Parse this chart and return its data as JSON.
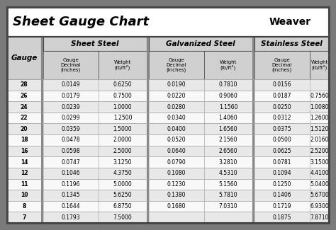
{
  "title": "Sheet Gauge Chart",
  "bg_outer": "#7a7a7a",
  "bg_inner": "#ffffff",
  "header_bg": "#d0d0d0",
  "row_odd_bg": "#e8e8e8",
  "row_even_bg": "#f8f8f8",
  "sep_color": "#888888",
  "border_color": "#444444",
  "gauges": [
    28,
    26,
    24,
    22,
    20,
    18,
    16,
    14,
    12,
    11,
    10,
    8,
    7
  ],
  "sheet_steel": [
    [
      "0.0149",
      "0.6250"
    ],
    [
      "0.0179",
      "0.7500"
    ],
    [
      "0.0239",
      "1.0000"
    ],
    [
      "0.0299",
      "1.2500"
    ],
    [
      "0.0359",
      "1.5000"
    ],
    [
      "0.0478",
      "2.0000"
    ],
    [
      "0.0598",
      "2.5000"
    ],
    [
      "0.0747",
      "3.1250"
    ],
    [
      "0.1046",
      "4.3750"
    ],
    [
      "0.1196",
      "5.0000"
    ],
    [
      "0.1345",
      "5.6250"
    ],
    [
      "0.1644",
      "6.8750"
    ],
    [
      "0.1793",
      "7.5000"
    ]
  ],
  "galvanized_steel": [
    [
      "0.0190",
      "0.7810"
    ],
    [
      "0.0220",
      "0.9060"
    ],
    [
      "0.0280",
      "1.1560"
    ],
    [
      "0.0340",
      "1.4060"
    ],
    [
      "0.0400",
      "1.6560"
    ],
    [
      "0.0520",
      "2.1560"
    ],
    [
      "0.0640",
      "2.6560"
    ],
    [
      "0.0790",
      "3.2810"
    ],
    [
      "0.1080",
      "4.5310"
    ],
    [
      "0.1230",
      "5.1560"
    ],
    [
      "0.1380",
      "5.7810"
    ],
    [
      "0.1680",
      "7.0310"
    ],
    [
      "",
      ""
    ]
  ],
  "stainless_steel": [
    [
      "0.0156",
      ""
    ],
    [
      "0.0187",
      "0.7560"
    ],
    [
      "0.0250",
      "1.0080"
    ],
    [
      "0.0312",
      "1.2600"
    ],
    [
      "0.0375",
      "1.5120"
    ],
    [
      "0.0500",
      "2.0160"
    ],
    [
      "0.0625",
      "2.5200"
    ],
    [
      "0.0781",
      "3.1500"
    ],
    [
      "0.1094",
      "4.4100"
    ],
    [
      "0.1250",
      "5.0400"
    ],
    [
      "0.1406",
      "5.6700"
    ],
    [
      "0.1719",
      "6.9300"
    ],
    [
      "0.1875",
      "7.8710"
    ]
  ],
  "fig_w": 4.74,
  "fig_h": 3.25,
  "dpi": 100
}
